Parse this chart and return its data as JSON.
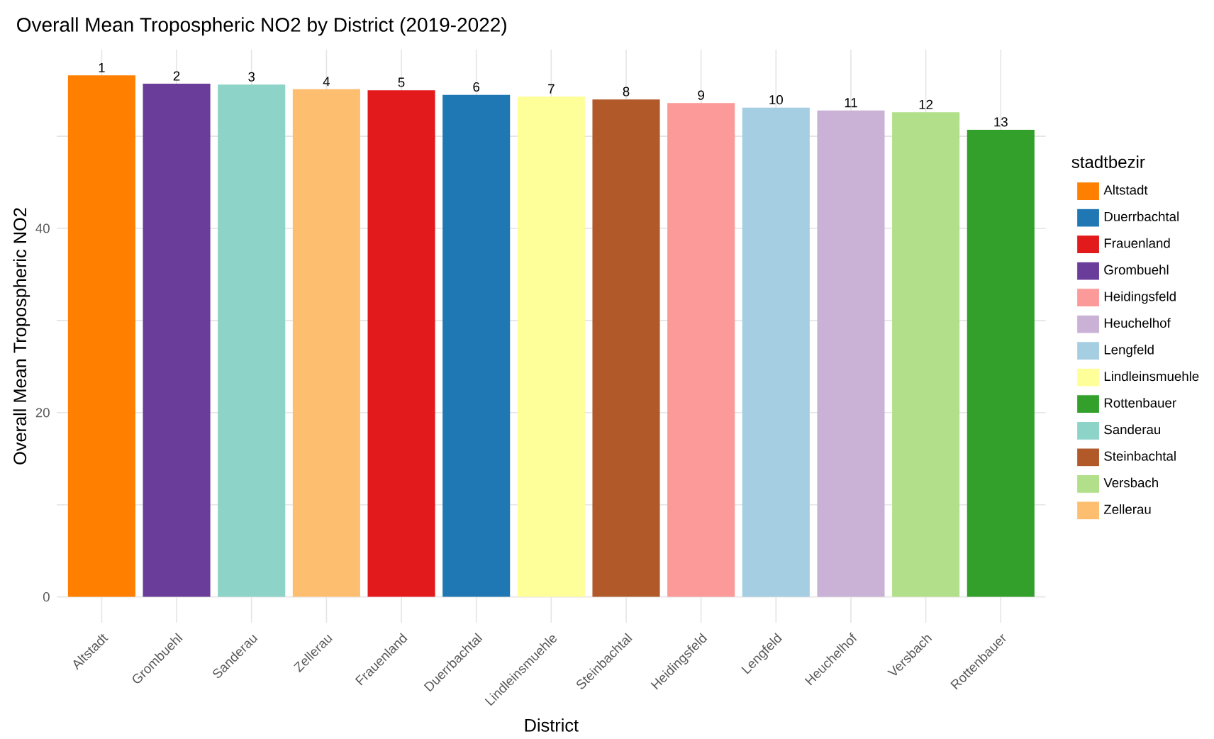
{
  "chart_data": {
    "type": "bar",
    "title": "Overall Mean Tropospheric NO2 by District (2019-2022)",
    "xlabel": "District",
    "ylabel": "Overall Mean Tropospheric NO2",
    "legend_title": "stadtbezir",
    "legend": "right",
    "grid": true,
    "categories": [
      "Altstadt",
      "Grombuehl",
      "Sanderau",
      "Zellerau",
      "Frauenland",
      "Duerrbachtal",
      "Lindleinsmuehle",
      "Steinbachtal",
      "Heidingsfeld",
      "Lengfeld",
      "Heuchelhof",
      "Versbach",
      "Rottenbauer"
    ],
    "ylim": [
      -2.8,
      59.4
    ],
    "yticks": [
      0,
      {
        "value": 10,
        "label": null
      },
      20,
      {
        "value": 30,
        "label": null
      },
      40,
      {
        "value": 50,
        "label": null
      }
    ],
    "series": [
      {
        "name": "Altstadt",
        "color": "#ff7f00",
        "values": [
          56.6,
          null,
          null,
          null,
          null,
          null,
          null,
          null,
          null,
          null,
          null,
          null,
          null
        ]
      },
      {
        "name": "Duerrbachtal",
        "color": "#1f78b4",
        "values": [
          null,
          null,
          null,
          null,
          null,
          54.5,
          null,
          null,
          null,
          null,
          null,
          null,
          null
        ]
      },
      {
        "name": "Frauenland",
        "color": "#e31a1c",
        "values": [
          null,
          null,
          null,
          null,
          55.0,
          null,
          null,
          null,
          null,
          null,
          null,
          null,
          null
        ]
      },
      {
        "name": "Grombuehl",
        "color": "#6a3d9a",
        "values": [
          null,
          55.7,
          null,
          null,
          null,
          null,
          null,
          null,
          null,
          null,
          null,
          null,
          null
        ]
      },
      {
        "name": "Heidingsfeld",
        "color": "#fb9a99",
        "values": [
          null,
          null,
          null,
          null,
          null,
          null,
          null,
          null,
          53.6,
          null,
          null,
          null,
          null
        ]
      },
      {
        "name": "Heuchelhof",
        "color": "#cab2d6",
        "values": [
          null,
          null,
          null,
          null,
          null,
          null,
          null,
          null,
          null,
          null,
          52.8,
          null,
          null
        ]
      },
      {
        "name": "Lengfeld",
        "color": "#a6cee3",
        "values": [
          null,
          null,
          null,
          null,
          null,
          null,
          null,
          null,
          null,
          53.1,
          null,
          null,
          null
        ]
      },
      {
        "name": "Lindleinsmuehle",
        "color": "#ffff99",
        "values": [
          null,
          null,
          null,
          null,
          null,
          null,
          54.3,
          null,
          null,
          null,
          null,
          null,
          null
        ]
      },
      {
        "name": "Rottenbauer",
        "color": "#33a02c",
        "values": [
          null,
          null,
          null,
          null,
          null,
          null,
          null,
          null,
          null,
          null,
          null,
          null,
          50.7
        ]
      },
      {
        "name": "Sanderau",
        "color": "#8dd3c7",
        "values": [
          null,
          null,
          55.6,
          null,
          null,
          null,
          null,
          null,
          null,
          null,
          null,
          null,
          null
        ]
      },
      {
        "name": "Steinbachtal",
        "color": "#b15928",
        "values": [
          null,
          null,
          null,
          null,
          null,
          null,
          null,
          54.0,
          null,
          null,
          null,
          null,
          null
        ]
      },
      {
        "name": "Versbach",
        "color": "#b2df8a",
        "values": [
          null,
          null,
          null,
          null,
          null,
          null,
          null,
          null,
          null,
          null,
          null,
          52.6,
          null
        ]
      },
      {
        "name": "Zellerau",
        "color": "#fdbf6f",
        "values": [
          null,
          null,
          null,
          55.1,
          null,
          null,
          null,
          null,
          null,
          null,
          null,
          null,
          null
        ]
      }
    ],
    "annotations": [
      {
        "text": "1",
        "x": "Altstadt",
        "y": 56.6
      },
      {
        "text": "2",
        "x": "Grombuehl",
        "y": 55.7
      },
      {
        "text": "3",
        "x": "Sanderau",
        "y": 55.6
      },
      {
        "text": "4",
        "x": "Zellerau",
        "y": 55.1
      },
      {
        "text": "5",
        "x": "Frauenland",
        "y": 55.0
      },
      {
        "text": "6",
        "x": "Duerrbachtal",
        "y": 54.5
      },
      {
        "text": "7",
        "x": "Lindleinsmuehle",
        "y": 54.3
      },
      {
        "text": "8",
        "x": "Steinbachtal",
        "y": 54.0
      },
      {
        "text": "9",
        "x": "Heidingsfeld",
        "y": 53.6
      },
      {
        "text": "10",
        "x": "Lengfeld",
        "y": 53.1
      },
      {
        "text": "11",
        "x": "Heuchelhof",
        "y": 52.8
      },
      {
        "text": "12",
        "x": "Versbach",
        "y": 52.6
      },
      {
        "text": "13",
        "x": "Rottenbauer",
        "y": 50.7
      }
    ]
  }
}
